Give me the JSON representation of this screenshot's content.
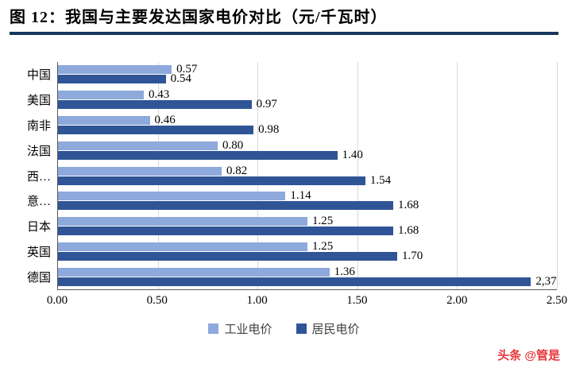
{
  "title": "图 12：我国与主要发达国家电价对比（元/千瓦时）",
  "watermark": "头条 @管是",
  "colors": {
    "title_underline": "#17375E",
    "industrial": "#8EA9DB",
    "residential": "#2F5597",
    "gridline": "#D9D9D9",
    "axis": "#595959",
    "watermark_red": "#E8373B"
  },
  "chart_data": {
    "type": "bar",
    "orientation": "horizontal",
    "title": "我国与主要发达国家电价对比（元/千瓦时）",
    "categories": [
      "中国",
      "美国",
      "南非",
      "法国",
      "西…",
      "意…",
      "日本",
      "英国",
      "德国"
    ],
    "series": [
      {
        "name": "工业电价",
        "color": "#8EA9DB",
        "values": [
          0.57,
          0.43,
          0.46,
          0.8,
          0.82,
          1.14,
          1.25,
          1.25,
          1.36
        ],
        "labels": [
          "0.57",
          "0.43",
          "0.46",
          "0.80",
          "0.82",
          "1.14",
          "1.25",
          "1.25",
          "1.36"
        ]
      },
      {
        "name": "居民电价",
        "color": "#2F5597",
        "values": [
          0.54,
          0.97,
          0.98,
          1.4,
          1.54,
          1.68,
          1.68,
          1.7,
          2.37
        ],
        "labels": [
          "0.54",
          "0.97",
          "0.98",
          "1.40",
          "1.54",
          "1.68",
          "1.68",
          "1.70",
          "2,37"
        ]
      }
    ],
    "xlim": [
      0,
      2.5
    ],
    "xticks": [
      "0.00",
      "0.50",
      "1.00",
      "1.50",
      "2.00",
      "2.50"
    ],
    "grid": "vertical",
    "legend": [
      "工业电价",
      "居民电价"
    ],
    "legend_position": "bottom"
  }
}
